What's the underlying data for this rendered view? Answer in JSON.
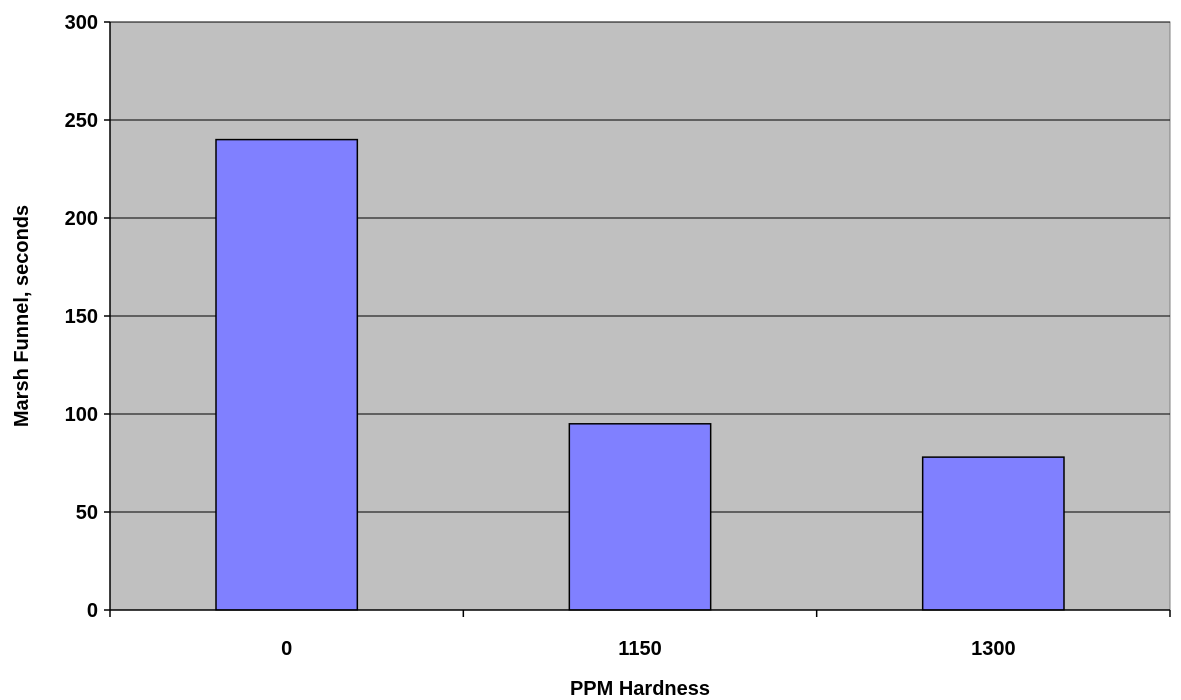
{
  "chart_data": {
    "type": "bar",
    "title": "",
    "xlabel": "PPM Hardness",
    "ylabel": "Marsh Funnel, seconds",
    "categories": [
      "0",
      "1150",
      "1300"
    ],
    "values": [
      240,
      95,
      78
    ],
    "ylim": [
      0,
      300
    ],
    "yticks": [
      0,
      50,
      100,
      150,
      200,
      250,
      300
    ],
    "grid": true,
    "legend": "none",
    "colors": {
      "bar_fill": "#8080ff",
      "bar_stroke": "#000000",
      "plot_background": "#c0c0c0",
      "gridline": "#000000"
    }
  }
}
